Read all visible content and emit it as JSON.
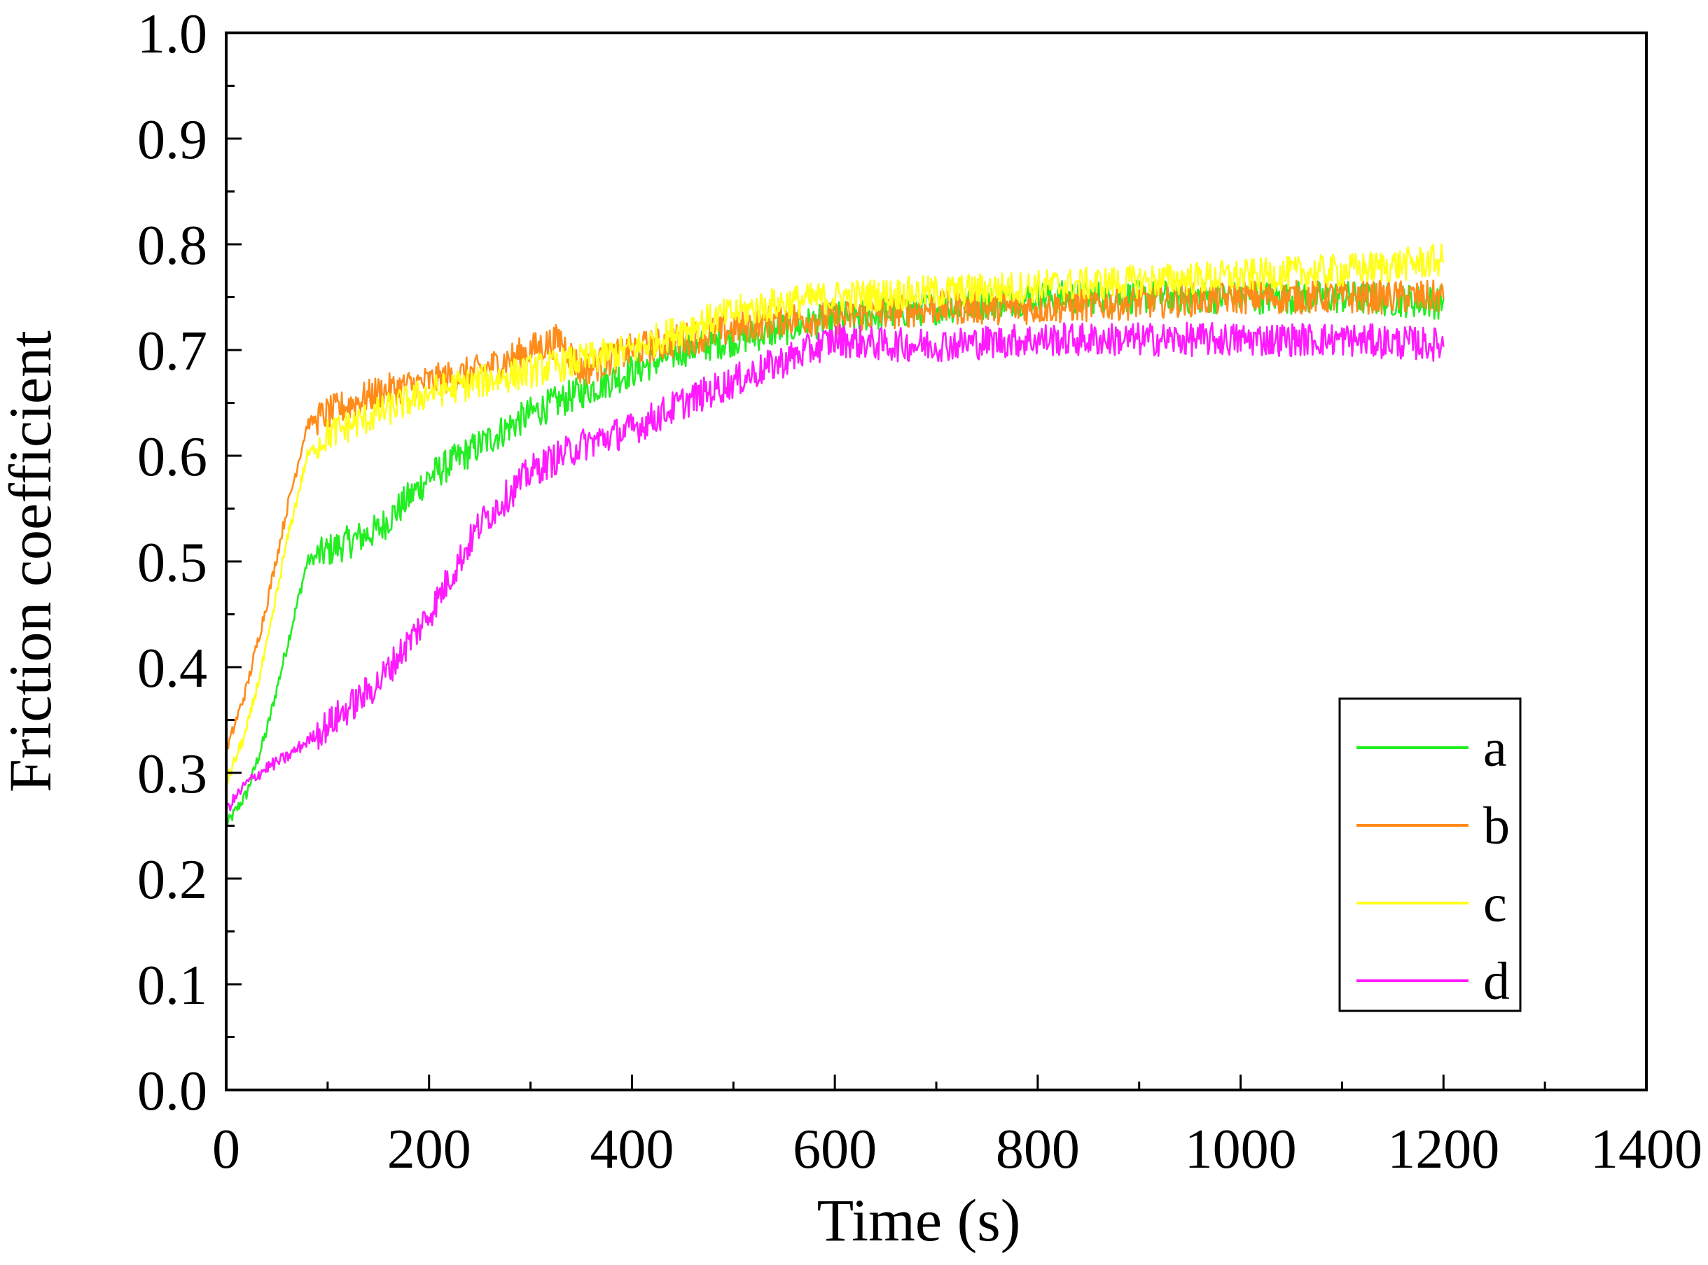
{
  "chart_data": {
    "type": "line",
    "title": "",
    "xlabel": "Time (s)",
    "ylabel": "Friction coefficient",
    "xlim": [
      0,
      1400
    ],
    "ylim": [
      0.0,
      1.0
    ],
    "x_ticks": [
      0,
      200,
      400,
      600,
      800,
      1000,
      1200,
      1400
    ],
    "x_tick_labels": [
      "0",
      "200",
      "400",
      "600",
      "800",
      "1000",
      "1200",
      "1400"
    ],
    "y_ticks": [
      0.0,
      0.1,
      0.2,
      0.3,
      0.4,
      0.5,
      0.6,
      0.7,
      0.8,
      0.9,
      1.0
    ],
    "y_tick_labels": [
      "0.0",
      "0.1",
      "0.2",
      "0.3",
      "0.4",
      "0.5",
      "0.6",
      "0.7",
      "0.8",
      "0.9",
      "1.0"
    ],
    "grid": false,
    "legend_position": "lower-right",
    "series": [
      {
        "name": "a",
        "color": "#22ee22",
        "x": [
          0,
          20,
          40,
          60,
          80,
          100,
          150,
          200,
          250,
          300,
          350,
          400,
          450,
          500,
          550,
          600,
          700,
          800,
          900,
          1000,
          1100,
          1200
        ],
        "y": [
          0.25,
          0.28,
          0.34,
          0.42,
          0.5,
          0.51,
          0.53,
          0.58,
          0.61,
          0.64,
          0.66,
          0.68,
          0.7,
          0.71,
          0.72,
          0.73,
          0.74,
          0.75,
          0.75,
          0.75,
          0.75,
          0.745
        ]
      },
      {
        "name": "b",
        "color": "#ff8c1a",
        "x": [
          0,
          20,
          40,
          60,
          80,
          100,
          150,
          200,
          250,
          300,
          330,
          350,
          400,
          450,
          500,
          550,
          600,
          700,
          800,
          900,
          1000,
          1100,
          1200
        ],
        "y": [
          0.32,
          0.38,
          0.46,
          0.55,
          0.63,
          0.64,
          0.66,
          0.67,
          0.68,
          0.7,
          0.71,
          0.68,
          0.7,
          0.71,
          0.72,
          0.73,
          0.73,
          0.74,
          0.74,
          0.745,
          0.75,
          0.75,
          0.75
        ]
      },
      {
        "name": "c",
        "color": "#ffff1a",
        "x": [
          0,
          20,
          40,
          60,
          80,
          100,
          150,
          200,
          250,
          300,
          350,
          400,
          450,
          500,
          550,
          600,
          700,
          800,
          900,
          1000,
          1100,
          1200
        ],
        "y": [
          0.29,
          0.34,
          0.42,
          0.52,
          0.6,
          0.62,
          0.64,
          0.66,
          0.67,
          0.68,
          0.69,
          0.7,
          0.72,
          0.735,
          0.745,
          0.75,
          0.755,
          0.76,
          0.765,
          0.77,
          0.775,
          0.785
        ]
      },
      {
        "name": "d",
        "color": "#ff1aff",
        "x": [
          0,
          20,
          40,
          60,
          80,
          100,
          150,
          200,
          250,
          300,
          350,
          400,
          450,
          500,
          550,
          600,
          650,
          700,
          800,
          900,
          1000,
          1100,
          1200
        ],
        "y": [
          0.265,
          0.29,
          0.305,
          0.315,
          0.33,
          0.345,
          0.385,
          0.45,
          0.535,
          0.585,
          0.61,
          0.625,
          0.65,
          0.67,
          0.69,
          0.71,
          0.705,
          0.705,
          0.71,
          0.71,
          0.71,
          0.71,
          0.705
        ]
      }
    ]
  }
}
